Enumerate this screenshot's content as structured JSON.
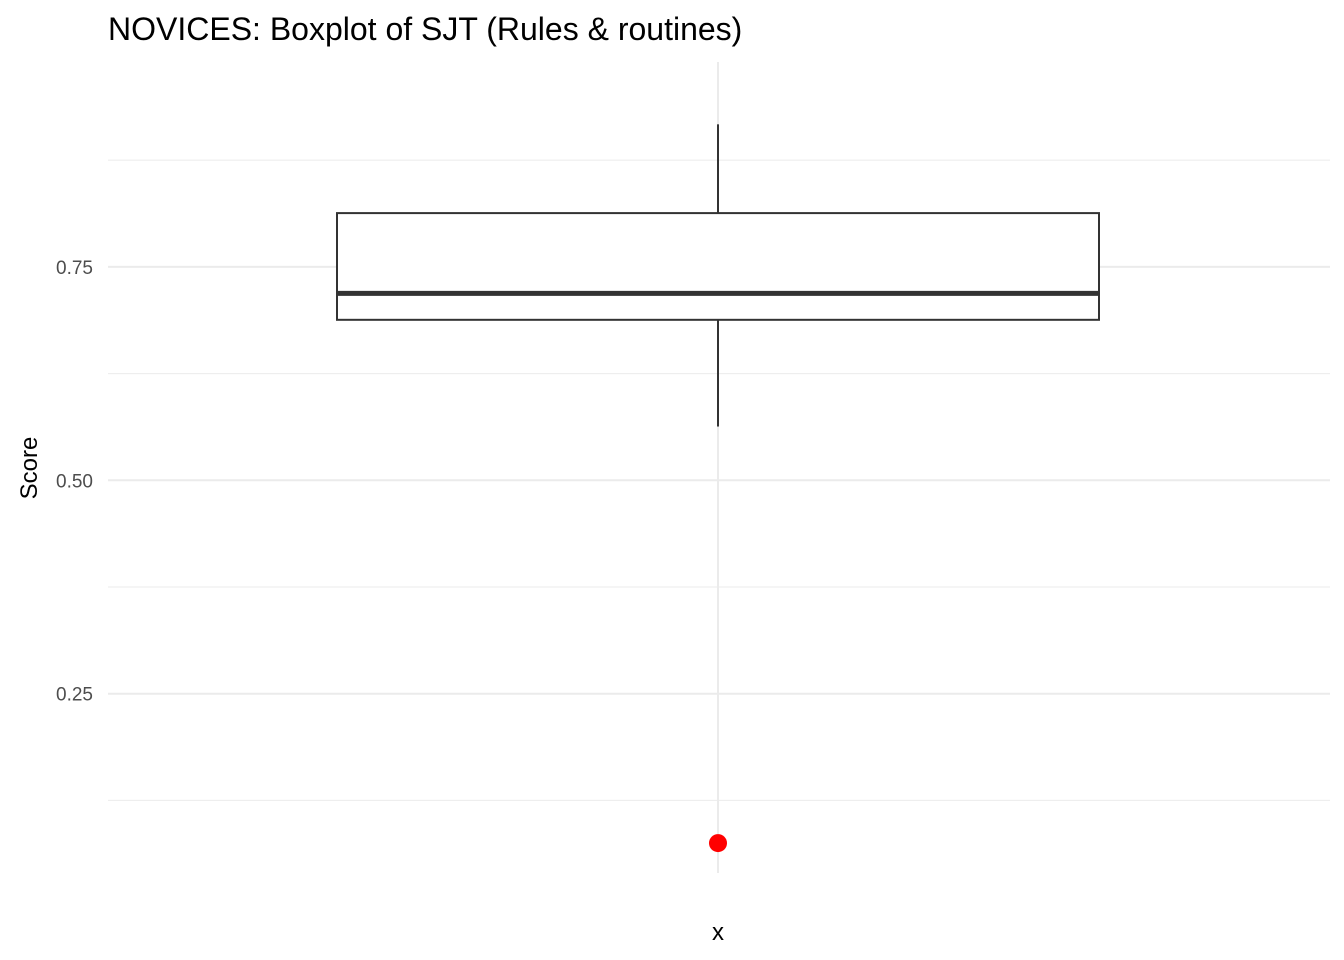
{
  "chart_data": {
    "type": "boxplot",
    "title": "NOVICES: Boxplot of SJT (Rules & routines)",
    "xlabel": "x",
    "ylabel": "Score",
    "ylim": [
      0.04,
      0.99
    ],
    "yticks": [
      0.25,
      0.5,
      0.75
    ],
    "ytick_labels": [
      "0.25",
      "0.50",
      "0.75"
    ],
    "yminor": [
      0.125,
      0.375,
      0.625,
      0.875
    ],
    "grid": true,
    "box": {
      "whisker_low": 0.563,
      "q1": 0.688,
      "median": 0.719,
      "q3": 0.813,
      "whisker_high": 0.917
    },
    "outliers": [
      0.075
    ],
    "colors": {
      "outlier": "#ff0000",
      "box_stroke": "#333333",
      "grid": "#ebebeb"
    }
  }
}
